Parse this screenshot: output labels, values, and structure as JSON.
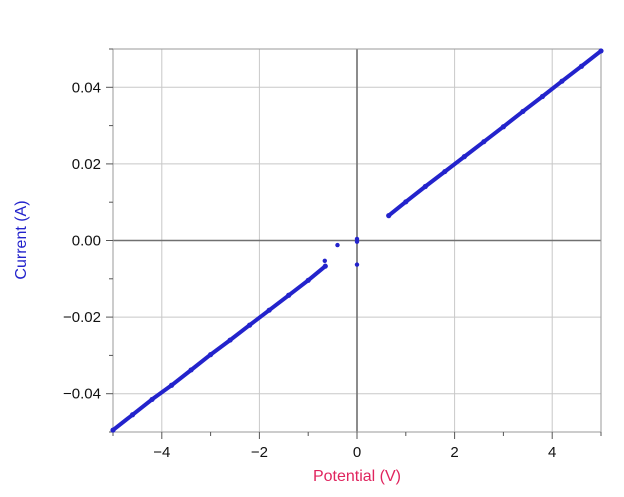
{
  "chart_data": {
    "type": "scatter",
    "title": "",
    "xlabel": "Potential (V)",
    "ylabel": "Current (A)",
    "xlim": [
      -5,
      5
    ],
    "ylim": [
      -0.05,
      0.05
    ],
    "x_ticks": [
      -4,
      -2,
      0,
      2,
      4
    ],
    "x_tick_labels": [
      "−4",
      "−2",
      "0",
      "2",
      "4"
    ],
    "y_ticks": [
      -0.04,
      -0.02,
      0.0,
      0.02,
      0.04
    ],
    "y_tick_labels": [
      "−0.04",
      "−0.02",
      "0.00",
      "0.02",
      "0.04"
    ],
    "grid": true,
    "colors": {
      "series": "#2323cc",
      "xlabel": "#e0245e",
      "ylabel": "#2323cc",
      "grid": "#c8c8c8",
      "zero_axis": "#707070"
    },
    "series": [
      {
        "segments": [
          {
            "x": [
              -5.0,
              -4.6,
              -4.2,
              -3.8,
              -3.4,
              -3.0,
              -2.6,
              -2.2,
              -1.8,
              -1.4,
              -1.0,
              -0.65
            ],
            "y": [
              -0.0495,
              -0.0455,
              -0.0415,
              -0.0378,
              -0.0338,
              -0.0298,
              -0.026,
              -0.0221,
              -0.0182,
              -0.0143,
              -0.0104,
              -0.0067
            ]
          },
          {
            "x": [
              0.65,
              1.0,
              1.4,
              1.8,
              2.2,
              2.6,
              3.0,
              3.4,
              3.8,
              4.2,
              4.6,
              5.0
            ],
            "y": [
              0.0065,
              0.0101,
              0.0141,
              0.018,
              0.0219,
              0.0258,
              0.0297,
              0.0337,
              0.0376,
              0.0416,
              0.0455,
              0.0495
            ]
          }
        ],
        "points": [
          {
            "x": -0.66,
            "y": -0.0053
          },
          {
            "x": -0.4,
            "y": -0.0012
          },
          {
            "x": 0.0,
            "y": 0.0004
          },
          {
            "x": 0.0,
            "y": -0.0003
          },
          {
            "x": 0.0,
            "y": -0.0063
          }
        ]
      }
    ]
  }
}
